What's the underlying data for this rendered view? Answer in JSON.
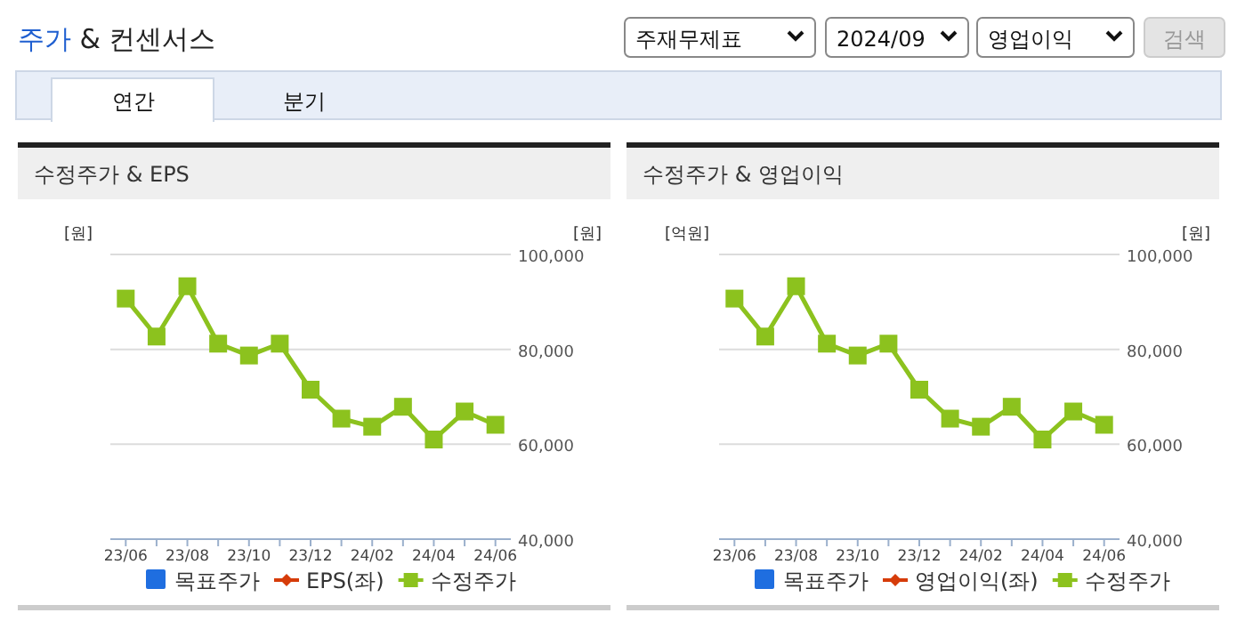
{
  "chart_data": [
    {
      "type": "other",
      "title": "주가 & 컨센서스",
      "annotations": [
        "주재무제표",
        "2024/09",
        "영업이익",
        "검색",
        "연간",
        "분기"
      ]
    },
    {
      "type": "line",
      "title": "수정주가 & EPS",
      "ylabel": "[원]",
      "y2label": "[원]",
      "categories": [
        "23/06",
        null,
        "23/08",
        null,
        "23/10",
        null,
        "23/12",
        null,
        "24/02",
        null,
        "24/04",
        null,
        "24/06"
      ],
      "y2lim": [
        40000,
        100000
      ],
      "y2ticks": [
        {
          "value": 40000,
          "label": "40,000"
        },
        {
          "value": 60000,
          "label": "60,000"
        },
        {
          "value": 80000,
          "label": "80,000"
        },
        {
          "value": 100000,
          "label": "100,000"
        }
      ],
      "grid": "y",
      "legend": "bottom",
      "series": [
        {
          "name": "목표주가",
          "color": "#1f6ee0",
          "marker": "square",
          "values": [
            null,
            null,
            null,
            null,
            null,
            null,
            null,
            null,
            null,
            null,
            null,
            null,
            null
          ]
        },
        {
          "name": "EPS(좌)",
          "color": "#d63c0a",
          "marker": "diamond",
          "values": [
            null,
            null,
            null,
            null,
            null,
            null,
            null,
            null,
            null,
            null,
            null,
            null,
            null
          ]
        },
        {
          "name": "수정주가",
          "color": "#8cc21e",
          "marker": "square",
          "axis": "y2",
          "values": [
            90700,
            82700,
            93300,
            81200,
            78700,
            81200,
            71500,
            65400,
            63700,
            67900,
            61000,
            66900,
            64100
          ]
        }
      ]
    },
    {
      "type": "line",
      "title": "수정주가 & 영업이익",
      "ylabel": "[억원]",
      "y2label": "[원]",
      "categories": [
        "23/06",
        null,
        "23/08",
        null,
        "23/10",
        null,
        "23/12",
        null,
        "24/02",
        null,
        "24/04",
        null,
        "24/06"
      ],
      "y2lim": [
        40000,
        100000
      ],
      "y2ticks": [
        {
          "value": 40000,
          "label": "40,000"
        },
        {
          "value": 60000,
          "label": "60,000"
        },
        {
          "value": 80000,
          "label": "80,000"
        },
        {
          "value": 100000,
          "label": "100,000"
        }
      ],
      "grid": "y",
      "legend": "bottom",
      "series": [
        {
          "name": "목표주가",
          "color": "#1f6ee0",
          "marker": "square",
          "values": [
            null,
            null,
            null,
            null,
            null,
            null,
            null,
            null,
            null,
            null,
            null,
            null,
            null
          ]
        },
        {
          "name": "영업이익(좌)",
          "color": "#d63c0a",
          "marker": "diamond",
          "values": [
            null,
            null,
            null,
            null,
            null,
            null,
            null,
            null,
            null,
            null,
            null,
            null,
            null
          ]
        },
        {
          "name": "수정주가",
          "color": "#8cc21e",
          "marker": "square",
          "axis": "y2",
          "values": [
            90700,
            82700,
            93300,
            81200,
            78700,
            81200,
            71500,
            65400,
            63700,
            67900,
            61000,
            66900,
            64100
          ]
        }
      ]
    }
  ]
}
